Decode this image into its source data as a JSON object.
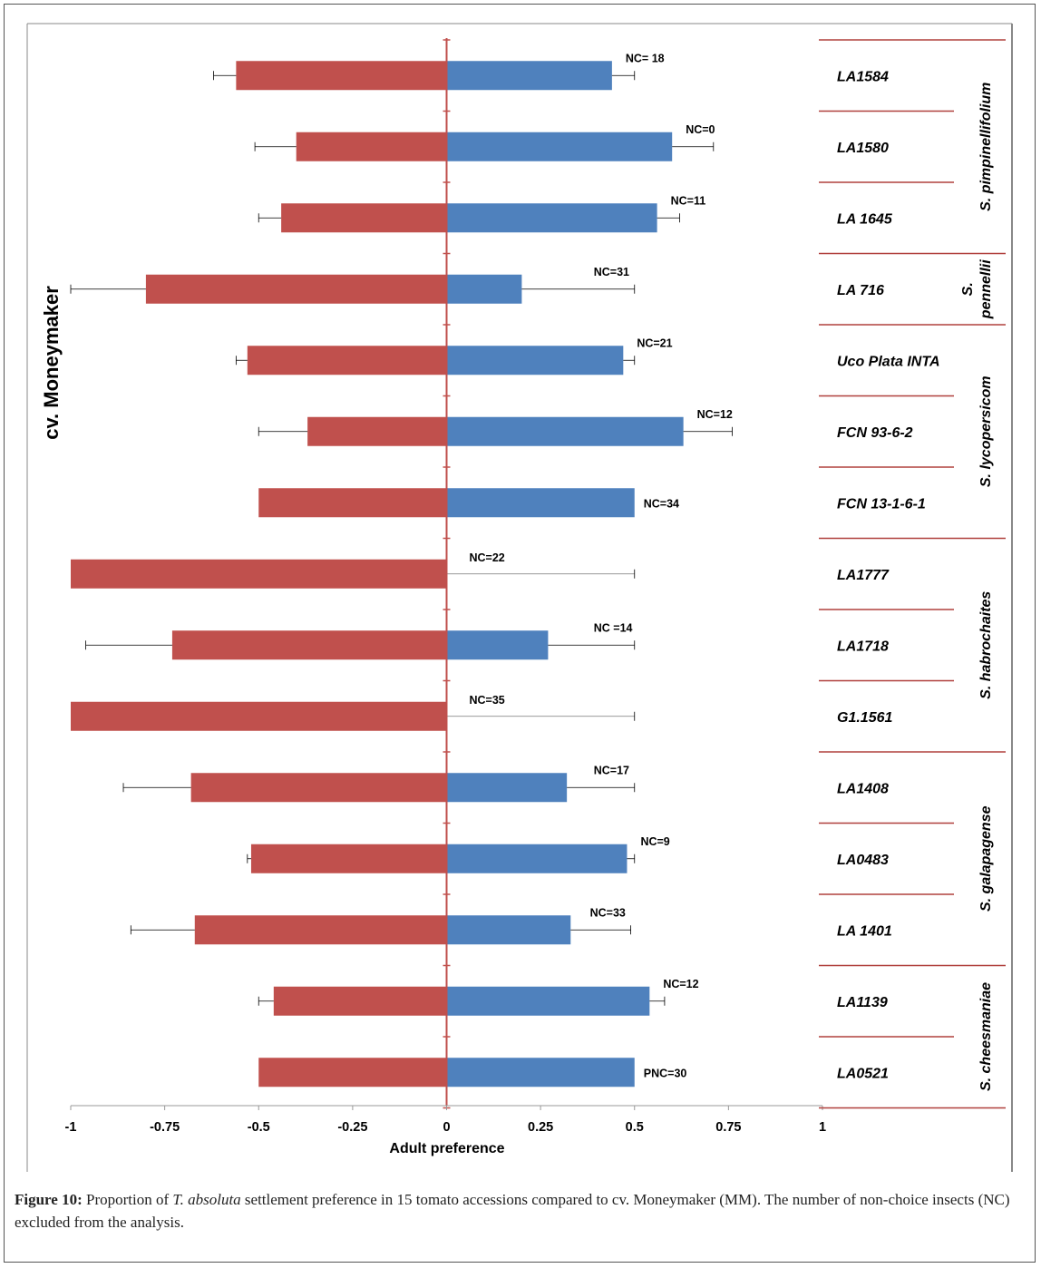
{
  "chart_data": {
    "type": "bar",
    "orientation": "horizontal",
    "xlabel": "Adult preference",
    "ylabel": "cv. Moneymaker",
    "xlim": [
      -1,
      1
    ],
    "xticks": [
      "-1",
      "-0.75",
      "-0.5",
      "-0.25",
      "0",
      "0.25",
      "0.5",
      "0.75",
      "1"
    ],
    "colors": {
      "negative": "#c0504d",
      "positive": "#4f81bd",
      "zero_line": "#c0504d"
    },
    "categories": [
      "LA1584",
      "LA1580",
      "LA 1645",
      "LA 716",
      "Uco Plata INTA",
      "FCN 93-6-2",
      "FCN 13-1-6-1",
      "LA1777",
      "LA1718",
      "G1.1561",
      "LA1408",
      "LA0483",
      "LA 1401",
      "LA1139",
      "LA0521"
    ],
    "series": [
      {
        "values": [
          -0.56,
          -0.4,
          -0.44,
          -0.8,
          -0.53,
          -0.37,
          -0.5,
          -1.0,
          -0.73,
          -1.0,
          -0.68,
          -0.52,
          -0.67,
          -0.46,
          -0.5
        ],
        "errors": [
          0.06,
          0.11,
          0.06,
          0.2,
          0.03,
          0.13,
          0,
          0,
          0.23,
          0,
          0.18,
          0.01,
          0.17,
          0.04,
          0
        ]
      },
      {
        "values": [
          0.44,
          0.6,
          0.56,
          0.2,
          0.47,
          0.63,
          0.5,
          0.0,
          0.27,
          0.0,
          0.32,
          0.48,
          0.33,
          0.54,
          0.5
        ],
        "errors": [
          0.06,
          0.11,
          0.06,
          0.3,
          0.03,
          0.13,
          0,
          0.5,
          0.23,
          0.5,
          0.18,
          0.02,
          0.16,
          0.04,
          0
        ]
      }
    ],
    "nc_labels": [
      "NC= 18",
      "NC=0",
      "NC=11",
      "NC=31",
      "NC=21",
      "NC=12",
      "NC=34",
      "NC=22",
      "NC =14",
      "NC=35",
      "NC=17",
      "NC=9",
      "NC=33",
      "NC=12",
      "PNC=30"
    ],
    "groups": [
      {
        "label": "S. pimpinellifolium",
        "lines": [
          "S. pimpinellifolium"
        ],
        "start": 0,
        "end": 2
      },
      {
        "label": "S. pennellii",
        "lines": [
          "S.",
          "pennellii"
        ],
        "start": 3,
        "end": 3
      },
      {
        "label": "S. lycopersicom",
        "lines": [
          "S. lycopersicom"
        ],
        "start": 4,
        "end": 6
      },
      {
        "label": "S. habrochaites",
        "lines": [
          "S. habrochaites"
        ],
        "start": 7,
        "end": 9
      },
      {
        "label": "S. galapagense",
        "lines": [
          "S. galapagense"
        ],
        "start": 10,
        "end": 12
      },
      {
        "label": "S. cheesmaniae",
        "lines": [
          "S. cheesmaniae"
        ],
        "start": 13,
        "end": 14
      }
    ]
  },
  "caption": {
    "figure_label": "Figure 10:",
    "text_before": "Proportion of",
    "species": "T. absoluta",
    "text_after": "settlement preference in 15 tomato accessions compared to cv. Moneymaker (MM). The number of non-choice insects (NC) excluded from the analysis."
  }
}
